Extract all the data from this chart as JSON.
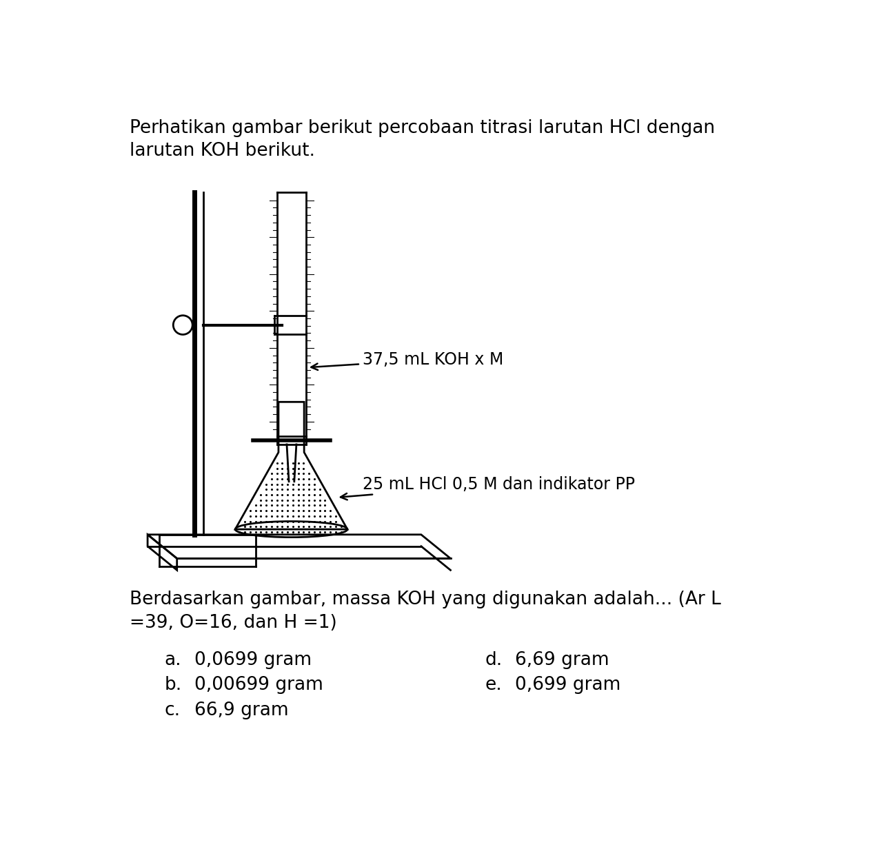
{
  "title_line1": "Perhatikan gambar berikut percobaan titrasi larutan HCl dengan",
  "title_line2": "larutan KOH berikut.",
  "question_line1": "Berdasarkan gambar, massa KOH yang digunakan adalah... (Ar L",
  "question_line2": "=39, O=16, dan H =1)",
  "label_burette": "37,5 mL KOH x M",
  "label_flask": "25 mL HCl 0,5 M dan indikator PP",
  "options": [
    {
      "letter": "a.",
      "text": "0,0699 gram"
    },
    {
      "letter": "b.",
      "text": "0,00699 gram"
    },
    {
      "letter": "c.",
      "text": "66,9 gram"
    },
    {
      "letter": "d.",
      "text": "6,69 gram"
    },
    {
      "letter": "e.",
      "text": "0,699 gram"
    }
  ],
  "bg_color": "#ffffff",
  "text_color": "#000000",
  "title_fontsize": 19,
  "question_fontsize": 19,
  "option_fontsize": 19,
  "label_fontsize": 17
}
